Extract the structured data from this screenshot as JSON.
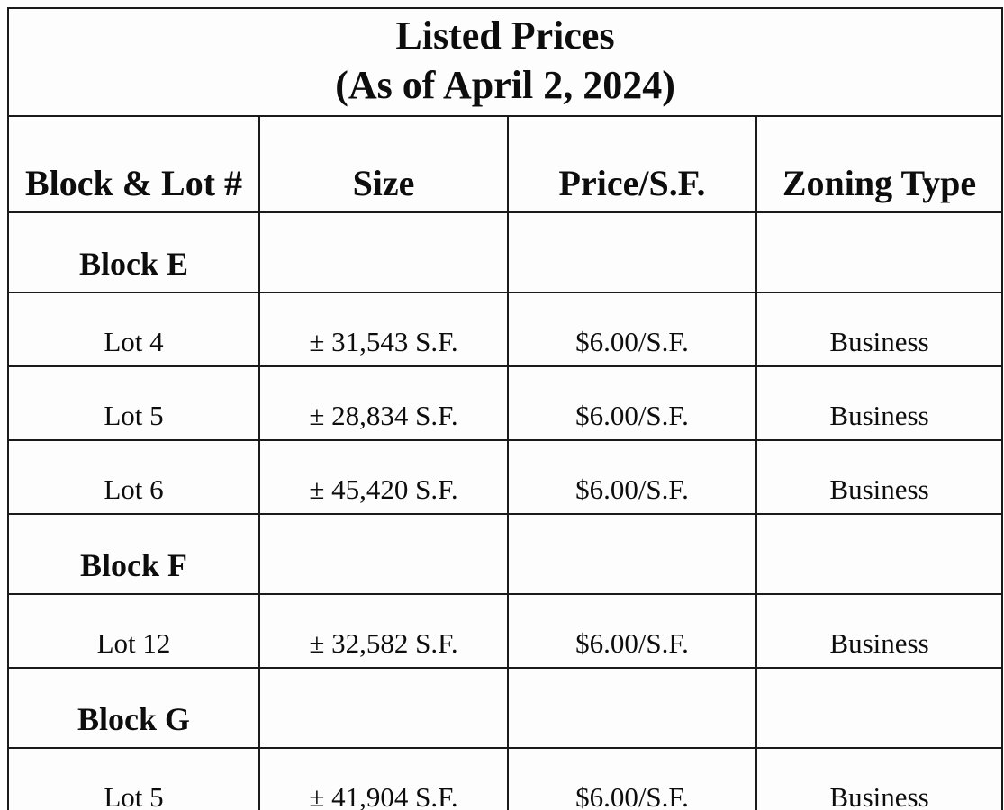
{
  "title": {
    "line1": "Listed Prices",
    "line2": "(As of April 2, 2024)"
  },
  "table": {
    "columns": [
      "Block & Lot #",
      "Size",
      "Price/S.F.",
      "Zoning Type"
    ],
    "rows": [
      {
        "type": "block",
        "label": "Block E"
      },
      {
        "type": "lot",
        "lot": "Lot 4",
        "size": "± 31,543 S.F.",
        "price": "$6.00/S.F.",
        "zoning": "Business"
      },
      {
        "type": "lot",
        "lot": "Lot 5",
        "size": "± 28,834 S.F.",
        "price": "$6.00/S.F.",
        "zoning": "Business"
      },
      {
        "type": "lot",
        "lot": "Lot 6",
        "size": "± 45,420 S.F.",
        "price": "$6.00/S.F.",
        "zoning": "Business"
      },
      {
        "type": "block",
        "label": "Block F"
      },
      {
        "type": "lot",
        "lot": "Lot 12",
        "size": "± 32,582 S.F.",
        "price": "$6.00/S.F.",
        "zoning": "Business"
      },
      {
        "type": "block",
        "label": "Block G"
      },
      {
        "type": "lot",
        "lot": "Lot 5",
        "size": "± 41,904 S.F.",
        "price": "$6.00/S.F.",
        "zoning": "Business"
      }
    ]
  },
  "colors": {
    "border": "#1a1a1a",
    "text": "#0d0d0d",
    "background": "#fdfdfd"
  }
}
